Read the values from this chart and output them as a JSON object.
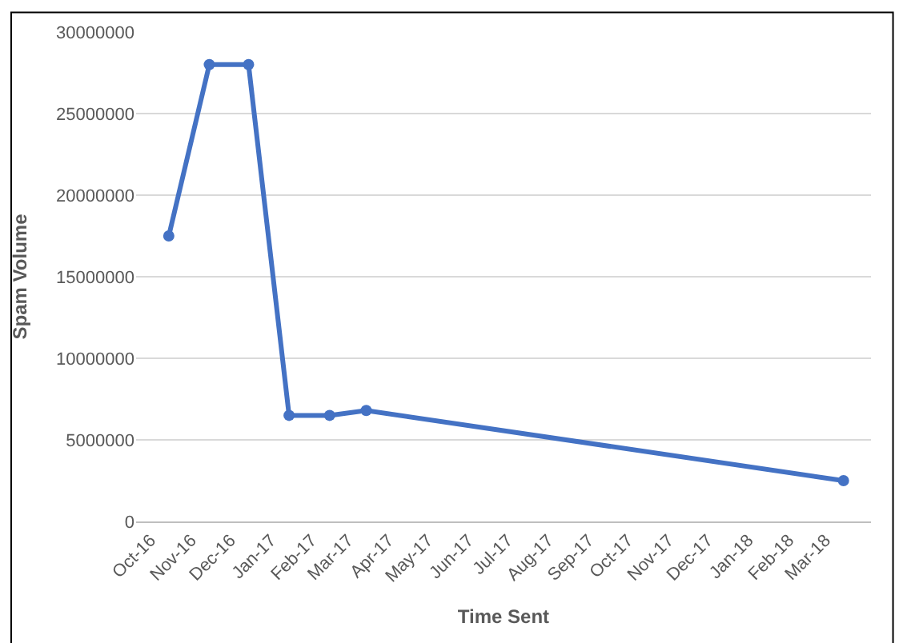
{
  "chart_data": {
    "type": "line",
    "xlabel": "Time Sent",
    "ylabel": "Spam Volume",
    "x": [
      "2016-10-15",
      "2016-11-15",
      "2016-12-15",
      "2017-01-15",
      "2017-02-15",
      "2017-03-15",
      "2018-03-15"
    ],
    "series": [
      {
        "color": "#4472c4",
        "values": [
          17500000,
          28000000,
          28000000,
          6500000,
          6500000,
          6800000,
          2500000
        ]
      }
    ],
    "xlim": [
      "2016-09-20",
      "2018-04-05"
    ],
    "xticks": [
      {
        "value": "2016-10-01",
        "label": "Oct-16"
      },
      {
        "value": "2016-11-01",
        "label": "Nov-16"
      },
      {
        "value": "2016-12-01",
        "label": "Dec-16"
      },
      {
        "value": "2017-01-01",
        "label": "Jan-17"
      },
      {
        "value": "2017-02-01",
        "label": "Feb-17"
      },
      {
        "value": "2017-03-01",
        "label": "Mar-17"
      },
      {
        "value": "2017-04-01",
        "label": "Apr-17"
      },
      {
        "value": "2017-05-01",
        "label": "May-17"
      },
      {
        "value": "2017-06-01",
        "label": "Jun-17"
      },
      {
        "value": "2017-07-01",
        "label": "Jul-17"
      },
      {
        "value": "2017-08-01",
        "label": "Aug-17"
      },
      {
        "value": "2017-09-01",
        "label": "Sep-17"
      },
      {
        "value": "2017-10-01",
        "label": "Oct-17"
      },
      {
        "value": "2017-11-01",
        "label": "Nov-17"
      },
      {
        "value": "2017-12-01",
        "label": "Dec-17"
      },
      {
        "value": "2018-01-01",
        "label": "Jan-18"
      },
      {
        "value": "2018-02-01",
        "label": "Feb-18"
      },
      {
        "value": "2018-03-01",
        "label": "Mar-18"
      }
    ],
    "ylim": [
      0,
      30000000
    ],
    "yticks": [
      0,
      5000000,
      10000000,
      15000000,
      20000000,
      25000000,
      30000000
    ],
    "grid": "y",
    "marker": "circle",
    "line_style": "solid",
    "legend": false
  }
}
